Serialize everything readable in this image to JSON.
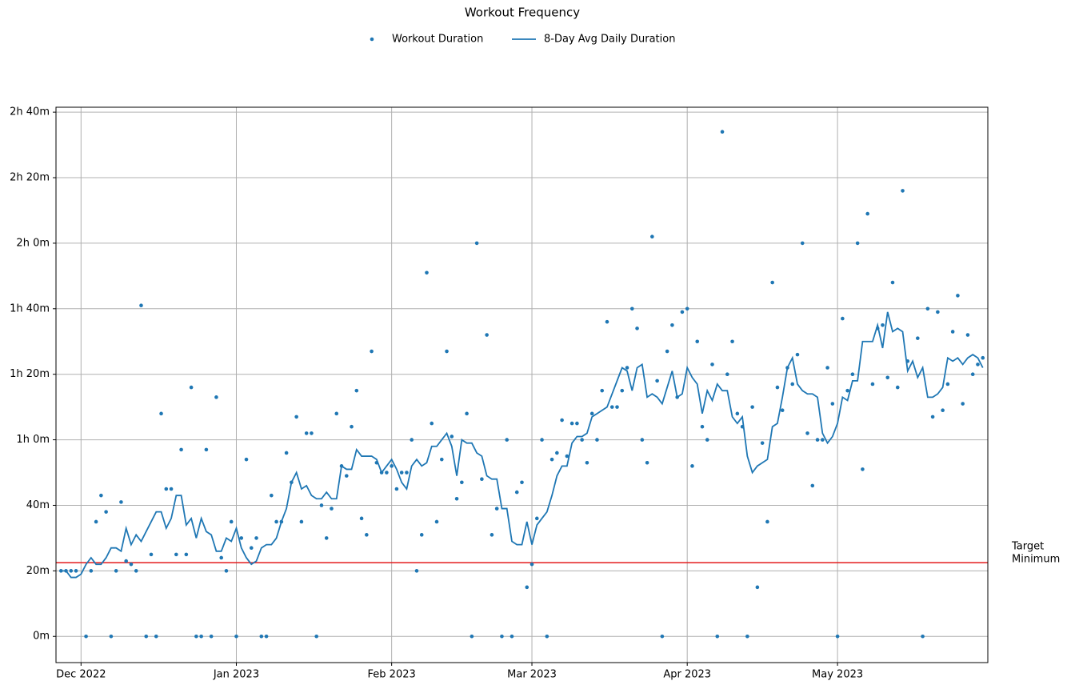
{
  "chart_data": {
    "type": "line",
    "title": "Workout Frequency",
    "legend": "upper center",
    "grid": true,
    "xlim": [
      "2022-11-26",
      "2023-05-31"
    ],
    "xticks": [
      {
        "value": "2022-12-01",
        "label": "Dec 2022"
      },
      {
        "value": "2023-01-01",
        "label": "Jan 2023"
      },
      {
        "value": "2023-02-01",
        "label": "Feb 2023"
      },
      {
        "value": "2023-03-01",
        "label": "Mar 2023"
      },
      {
        "value": "2023-04-01",
        "label": "Apr 2023"
      },
      {
        "value": "2023-05-01",
        "label": "May 2023"
      }
    ],
    "ylim": [
      -8,
      161.5
    ],
    "yticks": [
      {
        "value": 0,
        "label": "0m"
      },
      {
        "value": 20,
        "label": "20m"
      },
      {
        "value": 40,
        "label": "40m"
      },
      {
        "value": 60,
        "label": "1h 0m"
      },
      {
        "value": 80,
        "label": "1h 20m"
      },
      {
        "value": 100,
        "label": "1h 40m"
      },
      {
        "value": 120,
        "label": "2h 0m"
      },
      {
        "value": 140,
        "label": "2h 20m"
      },
      {
        "value": 160,
        "label": "2h 40m"
      }
    ],
    "hline": {
      "value": 22.5,
      "color": "#e31a1c",
      "label": [
        "Target",
        "Minimum"
      ]
    },
    "x": [
      "2022-11-27",
      "2022-11-28",
      "2022-11-29",
      "2022-11-30",
      "2022-12-01",
      "2022-12-02",
      "2022-12-03",
      "2022-12-04",
      "2022-12-05",
      "2022-12-06",
      "2022-12-07",
      "2022-12-08",
      "2022-12-09",
      "2022-12-10",
      "2022-12-11",
      "2022-12-12",
      "2022-12-13",
      "2022-12-14",
      "2022-12-15",
      "2022-12-16",
      "2022-12-17",
      "2022-12-18",
      "2022-12-19",
      "2022-12-20",
      "2022-12-21",
      "2022-12-22",
      "2022-12-23",
      "2022-12-24",
      "2022-12-25",
      "2022-12-26",
      "2022-12-27",
      "2022-12-28",
      "2022-12-29",
      "2022-12-30",
      "2022-12-31",
      "2023-01-01",
      "2023-01-02",
      "2023-01-03",
      "2023-01-04",
      "2023-01-05",
      "2023-01-06",
      "2023-01-07",
      "2023-01-08",
      "2023-01-09",
      "2023-01-10",
      "2023-01-11",
      "2023-01-12",
      "2023-01-13",
      "2023-01-14",
      "2023-01-15",
      "2023-01-16",
      "2023-01-17",
      "2023-01-18",
      "2023-01-19",
      "2023-01-20",
      "2023-01-21",
      "2023-01-22",
      "2023-01-23",
      "2023-01-24",
      "2023-01-25",
      "2023-01-26",
      "2023-01-27",
      "2023-01-28",
      "2023-01-29",
      "2023-01-30",
      "2023-01-31",
      "2023-02-01",
      "2023-02-02",
      "2023-02-03",
      "2023-02-04",
      "2023-02-05",
      "2023-02-06",
      "2023-02-07",
      "2023-02-08",
      "2023-02-09",
      "2023-02-10",
      "2023-02-11",
      "2023-02-12",
      "2023-02-13",
      "2023-02-14",
      "2023-02-15",
      "2023-02-16",
      "2023-02-17",
      "2023-02-18",
      "2023-02-19",
      "2023-02-20",
      "2023-02-21",
      "2023-02-22",
      "2023-02-23",
      "2023-02-24",
      "2023-02-25",
      "2023-02-26",
      "2023-02-27",
      "2023-02-28",
      "2023-03-01",
      "2023-03-02",
      "2023-03-03",
      "2023-03-04",
      "2023-03-05",
      "2023-03-06",
      "2023-03-07",
      "2023-03-08",
      "2023-03-09",
      "2023-03-10",
      "2023-03-11",
      "2023-03-12",
      "2023-03-13",
      "2023-03-14",
      "2023-03-15",
      "2023-03-16",
      "2023-03-17",
      "2023-03-18",
      "2023-03-19",
      "2023-03-20",
      "2023-03-21",
      "2023-03-22",
      "2023-03-23",
      "2023-03-24",
      "2023-03-25",
      "2023-03-26",
      "2023-03-27",
      "2023-03-28",
      "2023-03-29",
      "2023-03-30",
      "2023-03-31",
      "2023-04-01",
      "2023-04-02",
      "2023-04-03",
      "2023-04-04",
      "2023-04-05",
      "2023-04-06",
      "2023-04-07",
      "2023-04-08",
      "2023-04-09",
      "2023-04-10",
      "2023-04-11",
      "2023-04-12",
      "2023-04-13",
      "2023-04-14",
      "2023-04-15",
      "2023-04-16",
      "2023-04-17",
      "2023-04-18",
      "2023-04-19",
      "2023-04-20",
      "2023-04-21",
      "2023-04-22",
      "2023-04-23",
      "2023-04-24",
      "2023-04-25",
      "2023-04-26",
      "2023-04-27",
      "2023-04-28",
      "2023-04-29",
      "2023-04-30",
      "2023-05-01",
      "2023-05-02",
      "2023-05-03",
      "2023-05-04",
      "2023-05-05",
      "2023-05-06",
      "2023-05-07",
      "2023-05-08",
      "2023-05-09",
      "2023-05-10",
      "2023-05-11",
      "2023-05-12",
      "2023-05-13",
      "2023-05-14",
      "2023-05-15",
      "2023-05-16",
      "2023-05-17",
      "2023-05-18",
      "2023-05-19",
      "2023-05-20",
      "2023-05-21",
      "2023-05-22",
      "2023-05-23",
      "2023-05-24",
      "2023-05-25",
      "2023-05-26",
      "2023-05-27",
      "2023-05-28",
      "2023-05-29",
      "2023-05-30"
    ],
    "series": [
      {
        "name": "Workout Duration",
        "type": "scatter",
        "color": "#1f77b4",
        "values": [
          20,
          20,
          20,
          20,
          null,
          0,
          20,
          35,
          43,
          38,
          0,
          20,
          41,
          23,
          22,
          20,
          101,
          0,
          25,
          0,
          68,
          45,
          45,
          25,
          57,
          25,
          76,
          0,
          0,
          57,
          0,
          73,
          24,
          20,
          35,
          0,
          30,
          54,
          27,
          30,
          0,
          0,
          43,
          35,
          35,
          56,
          47,
          67,
          35,
          62,
          62,
          0,
          40,
          30,
          39,
          68,
          52,
          49,
          64,
          75,
          36,
          31,
          87,
          53,
          50,
          50,
          52,
          45,
          50,
          50,
          60,
          20,
          31,
          111,
          65,
          35,
          54,
          87,
          61,
          42,
          47,
          68,
          0,
          120,
          48,
          92,
          31,
          39,
          0,
          60,
          0,
          44,
          47,
          15,
          22,
          36,
          60,
          0,
          54,
          56,
          66,
          55,
          65,
          65,
          60,
          53,
          68,
          60,
          75,
          96,
          70,
          70,
          75,
          82,
          100,
          94,
          60,
          53,
          122,
          78,
          0,
          87,
          95,
          73,
          99,
          100,
          52,
          90,
          64,
          60,
          83,
          0,
          154,
          80,
          90,
          68,
          64,
          0,
          70,
          15,
          59,
          35,
          108,
          76,
          69,
          82,
          77,
          86,
          120,
          62,
          46,
          60,
          60,
          82,
          71,
          0,
          97,
          75,
          80,
          120,
          51,
          129,
          77,
          94,
          95,
          79,
          108,
          76,
          136,
          84,
          null,
          91,
          0,
          100,
          67,
          99,
          69,
          77,
          93,
          104,
          71,
          92,
          80,
          83,
          85
        ]
      },
      {
        "name": "8-Day Avg Daily Duration",
        "type": "line",
        "color": "#1f77b4",
        "values": [
          20,
          20,
          18,
          18,
          19,
          22,
          24,
          22,
          22,
          24,
          27,
          27,
          26,
          33,
          28,
          31,
          29,
          32,
          35,
          38,
          38,
          33,
          36,
          43,
          43,
          34,
          36,
          30,
          36,
          32,
          31,
          26,
          26,
          30,
          29,
          33,
          27,
          24,
          22,
          23,
          27,
          28,
          28,
          30,
          35,
          39,
          47,
          50,
          45,
          46,
          43,
          42,
          42,
          44,
          42,
          42,
          52,
          51,
          51,
          57,
          55,
          55,
          55,
          54,
          50,
          52,
          54,
          51,
          47,
          45,
          52,
          54,
          52,
          53,
          58,
          58,
          60,
          62,
          58,
          49,
          60,
          59,
          59,
          56,
          55,
          49,
          48,
          48,
          39,
          39,
          29,
          28,
          28,
          35,
          28,
          34,
          36,
          38,
          43,
          49,
          52,
          52,
          59,
          61,
          61,
          62,
          67,
          68,
          69,
          70,
          74,
          78,
          82,
          81,
          75,
          82,
          83,
          73,
          74,
          73,
          71,
          76,
          81,
          73,
          74,
          82,
          79,
          77,
          68,
          75,
          72,
          77,
          75,
          75,
          67,
          65,
          67,
          55,
          50,
          52,
          53,
          54,
          64,
          65,
          73,
          82,
          85,
          77,
          75,
          74,
          74,
          73,
          62,
          59,
          61,
          65,
          73,
          72,
          78,
          78,
          90,
          90,
          90,
          95,
          88,
          99,
          93,
          94,
          93,
          81,
          84,
          79,
          82,
          73,
          73,
          74,
          76,
          85,
          84,
          85,
          83,
          85,
          86,
          85,
          82
        ]
      }
    ]
  }
}
